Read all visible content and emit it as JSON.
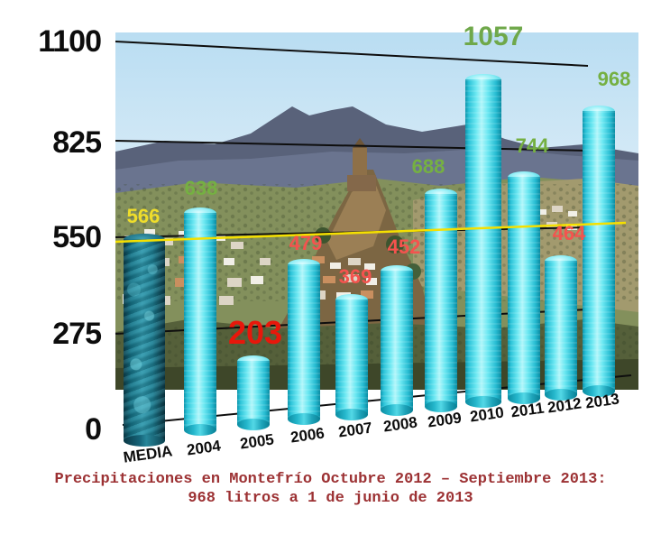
{
  "chart_data": {
    "type": "bar",
    "title": "Precipitaciones en Montefrío Octubre 2012 – Septiembre 2013: 968 litros a 1 de junio de 2013",
    "categories": [
      "MEDIA",
      "2004",
      "2005",
      "2006",
      "2007",
      "2008",
      "2009",
      "2010",
      "2011",
      "2012",
      "2013"
    ],
    "values": [
      566,
      638,
      203,
      479,
      369,
      452,
      688,
      1057,
      744,
      464,
      968
    ],
    "value_label_colors": [
      "#efdd2b",
      "#75b042",
      "#e8170b",
      "#f4534e",
      "#f4534e",
      "#f4534e",
      "#75b042",
      "#6fa84a",
      "#75b042",
      "#f4534e",
      "#75b042"
    ],
    "emphasized_categories": [
      "2005",
      "2010"
    ],
    "ylabel": "",
    "xlabel": "",
    "ylim": [
      0,
      1100
    ],
    "yticks_top_down": [
      "1100",
      "825",
      "550",
      "275",
      "0"
    ],
    "grid": true,
    "legend": null,
    "average_line": {
      "category": "MEDIA",
      "value": 566,
      "color": "#f5e000"
    }
  },
  "caption": {
    "line1": "Precipitaciones en Montefrío Octubre 2012 – Septiembre 2013:",
    "line2": "968 litros a 1 de junio de 2013",
    "color": "#9c3133"
  },
  "colors": {
    "bar_cyan": "#35c8dc",
    "bar_media_dark": "#15616f",
    "gridline": "#0e0e0e",
    "axis_text": "#0d0d0d",
    "background": "#ffffff"
  }
}
